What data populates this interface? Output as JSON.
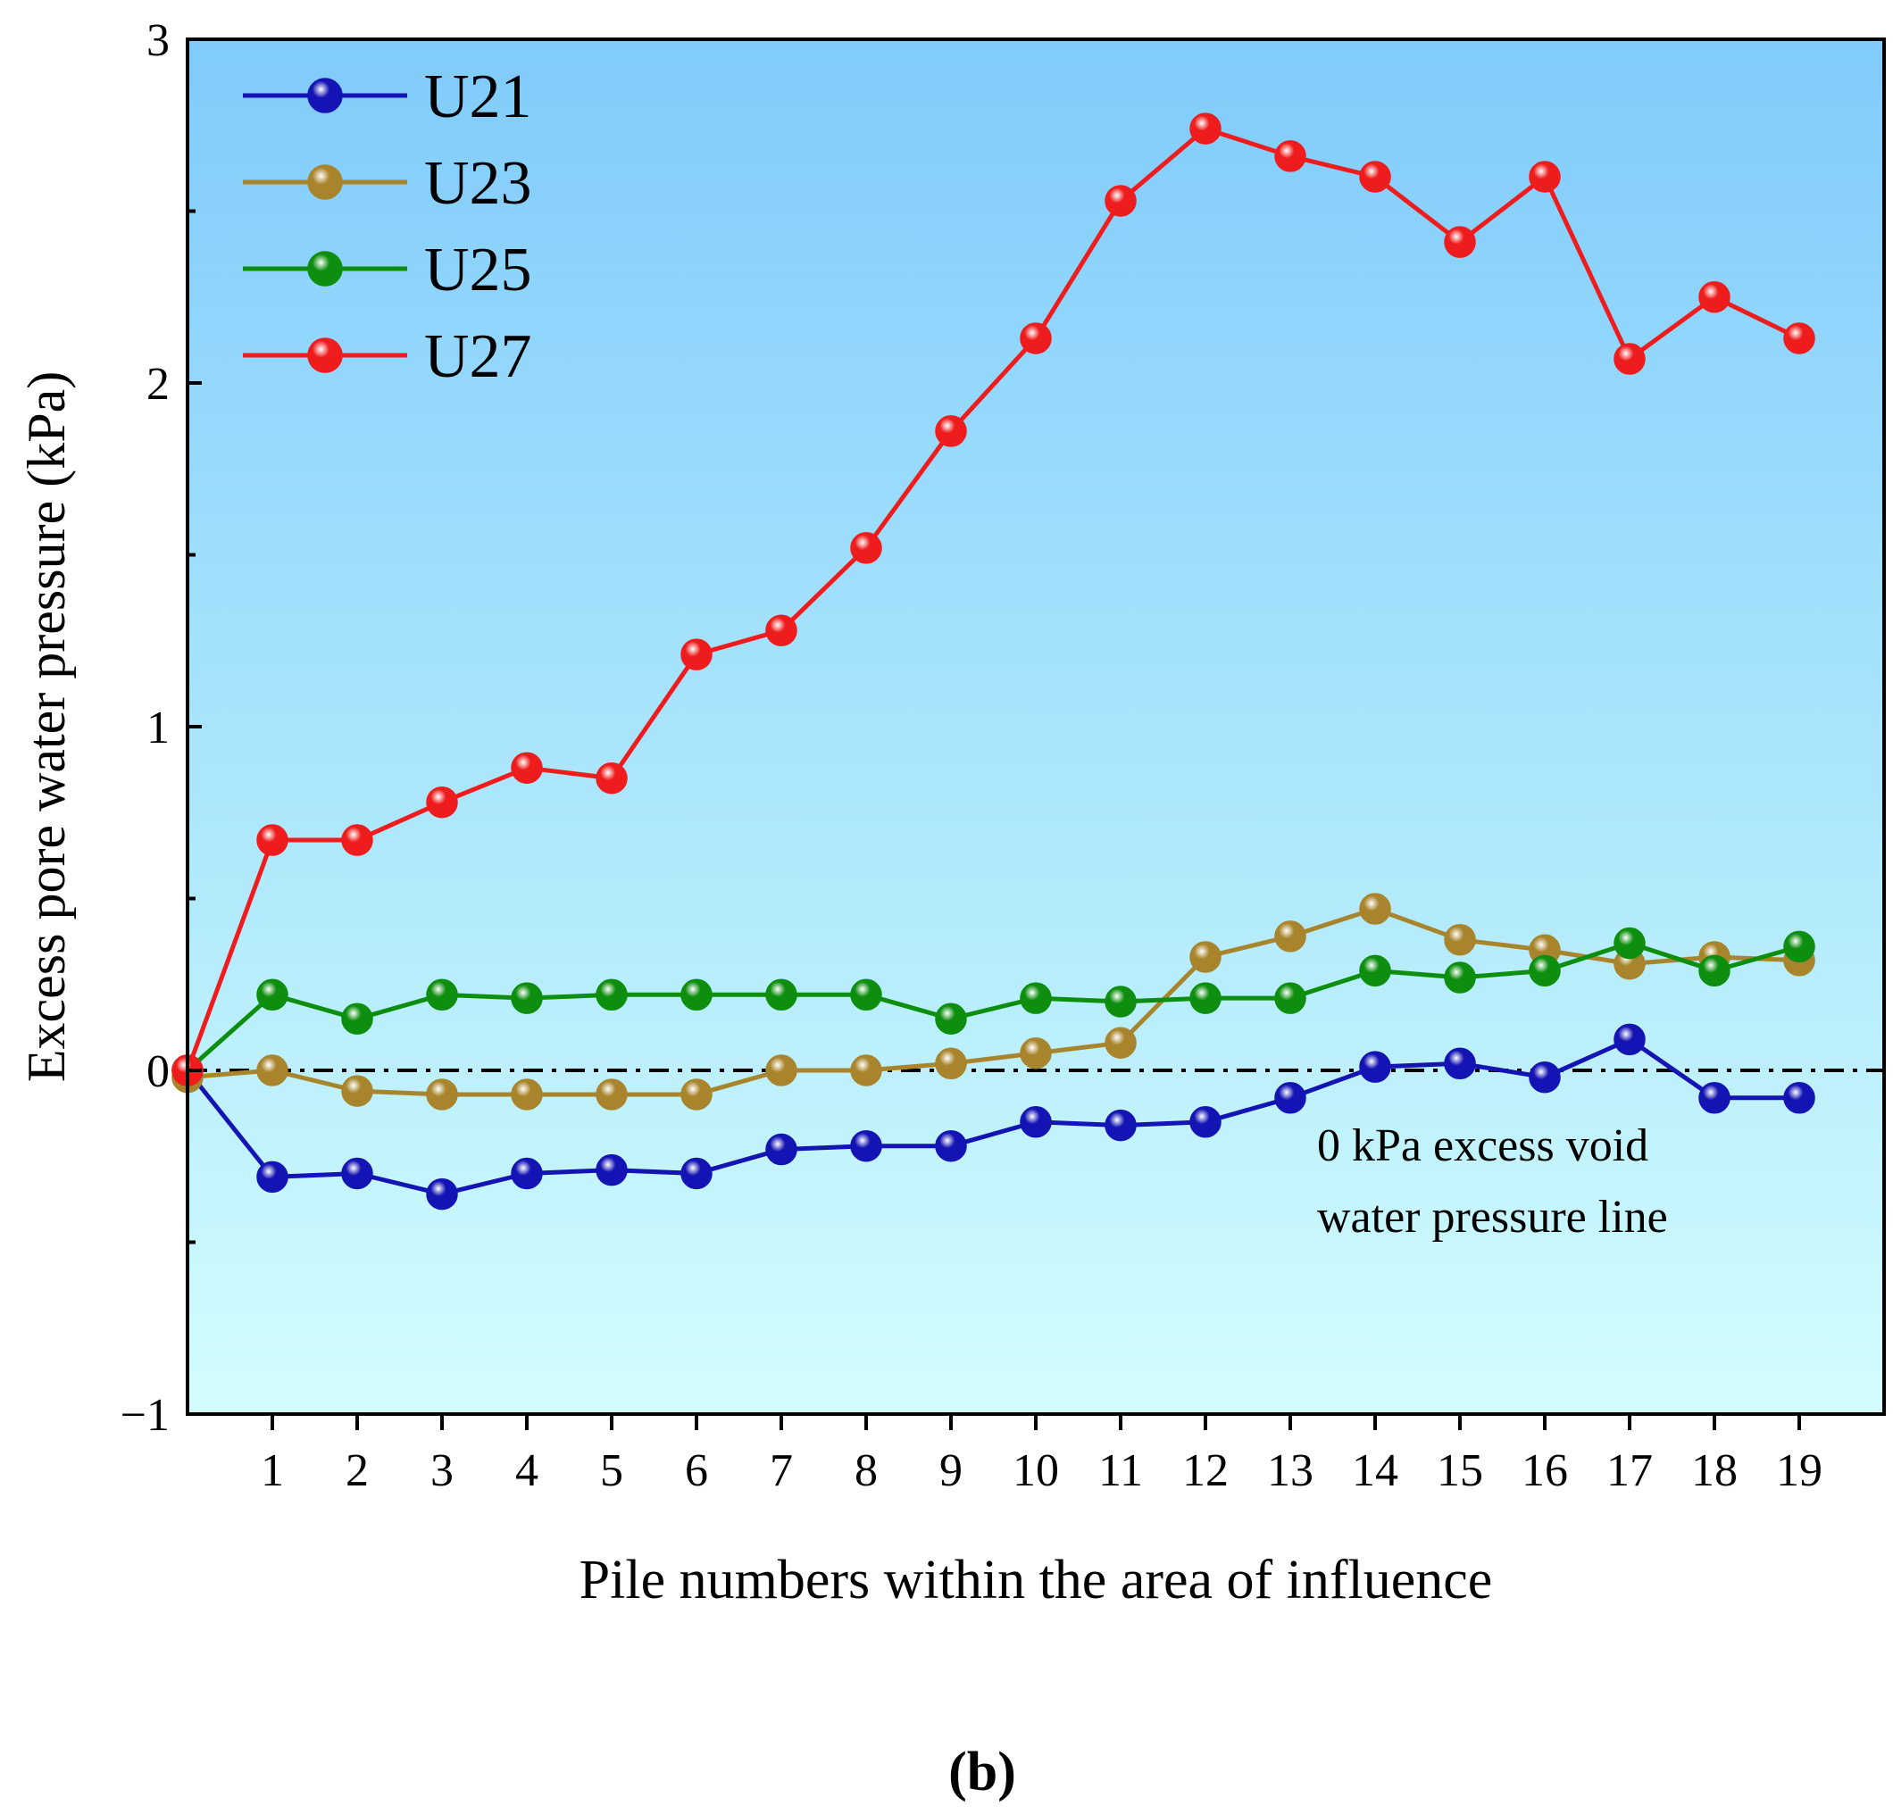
{
  "chart_data": {
    "type": "line",
    "panel_label": "(b)",
    "xlabel": "Pile numbers within the area of influence",
    "ylabel": "Excess pore water pressure (kPa)",
    "xlim": [
      0,
      20
    ],
    "ylim": [
      -1,
      3
    ],
    "x": [
      0,
      1,
      2,
      3,
      4,
      5,
      6,
      7,
      8,
      9,
      10,
      11,
      12,
      13,
      14,
      15,
      16,
      17,
      18,
      19
    ],
    "x_tick_labels": [
      "1",
      "2",
      "3",
      "4",
      "5",
      "6",
      "7",
      "8",
      "9",
      "10",
      "11",
      "12",
      "13",
      "14",
      "15",
      "16",
      "17",
      "18",
      "19"
    ],
    "y_ticks": [
      -1,
      0,
      1,
      2,
      3
    ],
    "y_tick_labels": [
      "−1",
      "0",
      "1",
      "2",
      "3"
    ],
    "reference_line": {
      "y": 0,
      "style": "dash-dot",
      "color": "#000000"
    },
    "annotation": [
      "0 kPa excess void",
      "water pressure line"
    ],
    "background_gradient": {
      "top": "#7fcbfb",
      "bottom": "#d2fdfd"
    },
    "series": [
      {
        "name": "U21",
        "color": "#1414b4",
        "values": [
          0,
          -0.31,
          -0.3,
          -0.36,
          -0.3,
          -0.29,
          -0.3,
          -0.23,
          -0.22,
          -0.22,
          -0.15,
          -0.16,
          -0.15,
          -0.08,
          0.01,
          0.02,
          -0.02,
          0.09,
          -0.08,
          -0.08
        ]
      },
      {
        "name": "U23",
        "color": "#a8852c",
        "values": [
          -0.02,
          0.0,
          -0.06,
          -0.07,
          -0.07,
          -0.07,
          -0.07,
          0.0,
          0.0,
          0.02,
          0.05,
          0.08,
          0.33,
          0.39,
          0.47,
          0.38,
          0.35,
          0.31,
          0.33,
          0.32
        ]
      },
      {
        "name": "U25",
        "color": "#0e8e0e",
        "values": [
          0,
          0.22,
          0.15,
          0.22,
          0.21,
          0.22,
          0.22,
          0.22,
          0.22,
          0.15,
          0.21,
          0.2,
          0.21,
          0.21,
          0.29,
          0.27,
          0.29,
          0.37,
          0.29,
          0.36
        ]
      },
      {
        "name": "U27",
        "color": "#ee1c1c",
        "values": [
          0,
          0.67,
          0.67,
          0.78,
          0.88,
          0.85,
          1.21,
          1.28,
          1.52,
          1.86,
          2.13,
          2.53,
          2.74,
          2.66,
          2.6,
          2.41,
          2.6,
          2.07,
          2.25,
          2.13
        ]
      }
    ]
  }
}
